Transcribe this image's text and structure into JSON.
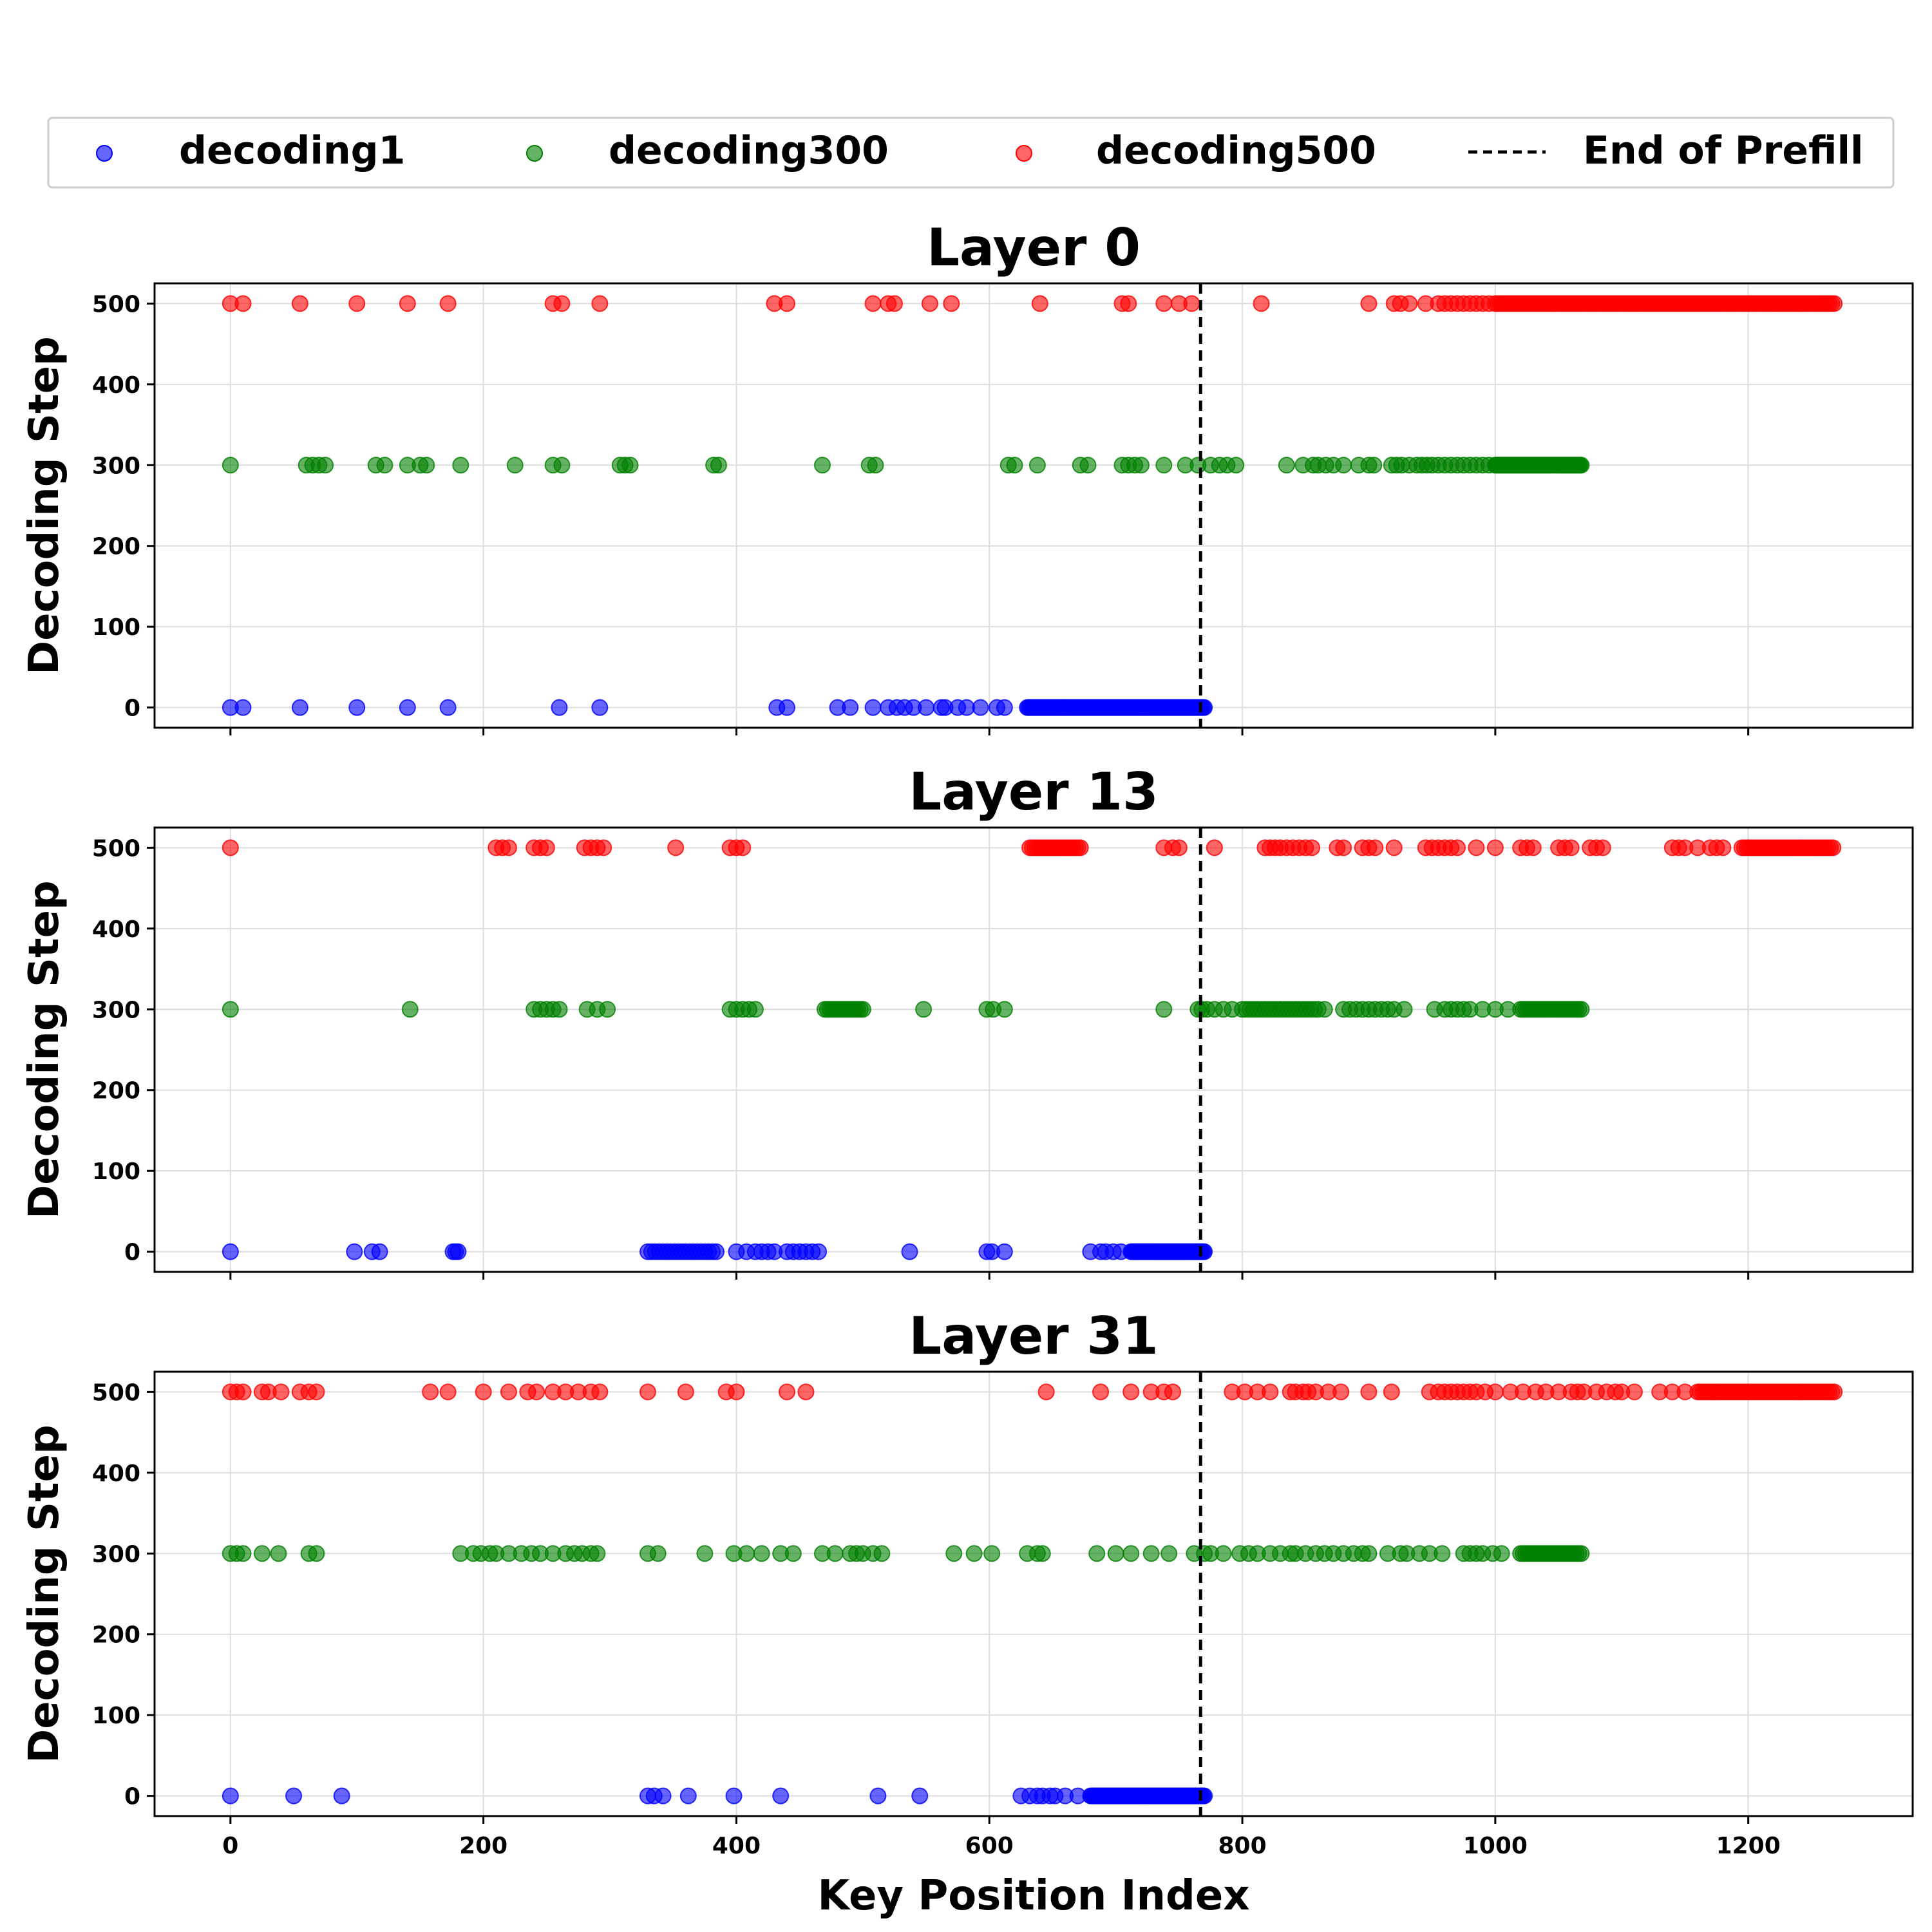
{
  "chart_data": {
    "type": "scatter",
    "legend": {
      "placement": "top",
      "items": [
        {
          "label": "decoding1",
          "kind": "marker",
          "color": "#0000ff"
        },
        {
          "label": "decoding300",
          "kind": "marker",
          "color": "#008000"
        },
        {
          "label": "decoding500",
          "kind": "marker",
          "color": "#ff0000"
        },
        {
          "label": "End of Prefill",
          "kind": "dashed-line",
          "color": "#000000"
        }
      ]
    },
    "xlabel": "Key Position Index",
    "ylabel": "Decoding Step",
    "xlim": [
      -60,
      1330
    ],
    "ylim": [
      -25,
      525
    ],
    "xticks": [
      0,
      200,
      400,
      600,
      800,
      1000,
      1200
    ],
    "yticks": [
      0,
      100,
      200,
      300,
      400,
      500
    ],
    "grid": true,
    "marker_alpha": 0.6,
    "prefill_end": 767,
    "panels": [
      {
        "title": "Layer 0",
        "series": [
          {
            "name": "decoding1",
            "y": 0,
            "color": "#0000ff",
            "ranges": [
              [
                630,
                770,
                1
              ]
            ],
            "x": [
              0,
              10,
              55,
              100,
              140,
              172,
              260,
              292,
              432,
              440,
              480,
              490,
              508,
              520,
              527,
              533,
              540,
              550,
              562,
              565,
              575,
              582,
              593,
              606,
              612
            ]
          },
          {
            "name": "decoding300",
            "y": 300,
            "color": "#008000",
            "ranges": [
              [
                1000,
                1068,
                1
              ]
            ],
            "x": [
              0,
              60,
              65,
              70,
              75,
              115,
              122,
              140,
              150,
              155,
              182,
              225,
              255,
              262,
              308,
              312,
              316,
              382,
              386,
              468,
              505,
              510,
              615,
              620,
              638,
              672,
              678,
              705,
              710,
              715,
              720,
              738,
              755,
              765,
              775,
              782,
              788,
              795,
              835,
              848,
              856,
              860,
              866,
              872,
              880,
              892,
              900,
              904,
              918,
              922,
              926,
              932,
              938,
              942,
              946,
              950,
              955,
              960,
              965,
              970,
              975,
              980,
              985,
              990,
              995
            ]
          },
          {
            "name": "decoding500",
            "y": 500,
            "color": "#ff0000",
            "ranges": [
              [
                1000,
                1268,
                2
              ]
            ],
            "x": [
              0,
              10,
              55,
              100,
              140,
              172,
              255,
              262,
              292,
              430,
              440,
              508,
              520,
              525,
              553,
              570,
              640,
              705,
              710,
              738,
              750,
              760,
              815,
              900,
              920,
              925,
              932,
              945,
              955,
              960,
              965,
              970,
              975,
              980,
              985,
              990,
              995
            ]
          }
        ]
      },
      {
        "title": "Layer 13",
        "series": [
          {
            "name": "decoding1",
            "y": 0,
            "color": "#0000ff",
            "ranges": [
              [
                330,
                385,
                3
              ],
              [
                712,
                770,
                1
              ]
            ],
            "x": [
              0,
              98,
              112,
              118,
              176,
              178,
              180,
              400,
              408,
              415,
              420,
              425,
              430,
              440,
              445,
              450,
              455,
              460,
              465,
              537,
              598,
              602,
              612,
              680,
              688,
              692,
              698,
              704
            ]
          },
          {
            "name": "decoding300",
            "y": 300,
            "color": "#008000",
            "ranges": [
              [
                470,
                500,
                2
              ],
              [
                800,
                860,
                3
              ],
              [
                1020,
                1068,
                2
              ]
            ],
            "x": [
              0,
              142,
              240,
              245,
              250,
              255,
              260,
              282,
              290,
              298,
              395,
              400,
              405,
              410,
              415,
              548,
              598,
              603,
              612,
              738,
              765,
              768,
              772,
              778,
              785,
              792,
              865,
              880,
              885,
              890,
              895,
              900,
              905,
              910,
              915,
              920,
              928,
              952,
              960,
              965,
              970,
              975,
              980,
              990,
              1000,
              1010
            ]
          },
          {
            "name": "decoding500",
            "y": 500,
            "color": "#ff0000",
            "ranges": [
              [
                632,
                672,
                2
              ],
              [
                1195,
                1268,
                2
              ]
            ],
            "x": [
              0,
              210,
              215,
              220,
              240,
              245,
              250,
              280,
              285,
              290,
              295,
              352,
              395,
              400,
              405,
              738,
              745,
              750,
              778,
              818,
              822,
              826,
              830,
              835,
              840,
              845,
              850,
              855,
              875,
              880,
              895,
              900,
              905,
              920,
              945,
              950,
              955,
              960,
              965,
              970,
              985,
              1000,
              1020,
              1025,
              1030,
              1050,
              1055,
              1060,
              1075,
              1080,
              1085,
              1140,
              1145,
              1150,
              1160,
              1170,
              1175,
              1180
            ]
          }
        ]
      },
      {
        "title": "Layer 31",
        "series": [
          {
            "name": "decoding1",
            "y": 0,
            "color": "#0000ff",
            "ranges": [
              [
                680,
                770,
                1
              ]
            ],
            "x": [
              0,
              50,
              88,
              330,
              335,
              342,
              362,
              398,
              435,
              512,
              545,
              625,
              632,
              638,
              642,
              648,
              652,
              660,
              670
            ]
          },
          {
            "name": "decoding300",
            "y": 300,
            "color": "#008000",
            "ranges": [
              [
                1020,
                1068,
                2
              ]
            ],
            "x": [
              0,
              5,
              10,
              25,
              38,
              62,
              68,
              182,
              192,
              198,
              205,
              210,
              220,
              230,
              238,
              245,
              255,
              265,
              272,
              278,
              285,
              290,
              330,
              338,
              375,
              398,
              408,
              420,
              435,
              445,
              468,
              478,
              490,
              495,
              500,
              508,
              515,
              572,
              588,
              602,
              630,
              638,
              642,
              685,
              700,
              712,
              728,
              742,
              762,
              770,
              775,
              785,
              798,
              805,
              812,
              822,
              830,
              838,
              842,
              850,
              858,
              865,
              872,
              880,
              888,
              895,
              900,
              915,
              925,
              930,
              940,
              948,
              958,
              975,
              980,
              985,
              990,
              998,
              1005
            ]
          },
          {
            "name": "decoding500",
            "y": 500,
            "color": "#ff0000",
            "ranges": [
              [
                1160,
                1268,
                2
              ]
            ],
            "x": [
              0,
              5,
              10,
              25,
              30,
              40,
              55,
              62,
              68,
              158,
              172,
              200,
              220,
              235,
              242,
              255,
              265,
              275,
              285,
              292,
              330,
              360,
              392,
              400,
              440,
              455,
              645,
              688,
              712,
              728,
              738,
              745,
              792,
              802,
              812,
              822,
              838,
              842,
              848,
              852,
              858,
              868,
              878,
              900,
              918,
              948,
              955,
              960,
              965,
              970,
              975,
              980,
              985,
              992,
              1000,
              1012,
              1022,
              1032,
              1040,
              1050,
              1060,
              1065,
              1070,
              1080,
              1088,
              1095,
              1100,
              1110,
              1130,
              1140,
              1150
            ]
          }
        ]
      }
    ]
  }
}
